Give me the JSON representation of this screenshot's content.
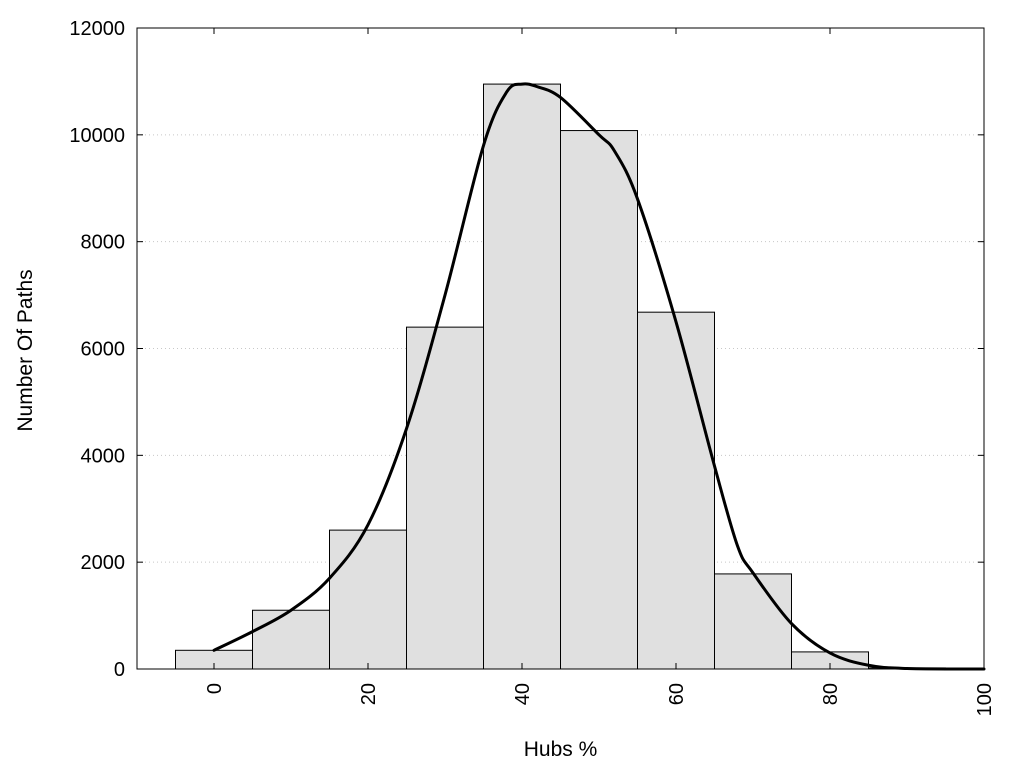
{
  "chart_data": {
    "type": "bar",
    "title": "",
    "xlabel": "Hubs %",
    "ylabel": "Number Of Paths",
    "xlim": [
      -10,
      100
    ],
    "ylim": [
      0,
      12000
    ],
    "xticks": [
      0,
      20,
      40,
      60,
      80,
      100
    ],
    "yticks": [
      0,
      2000,
      4000,
      6000,
      8000,
      10000,
      12000
    ],
    "grid": "horizontal dotted",
    "bar_color": "#e0e0e0",
    "bar_width": 10,
    "bins": [
      {
        "center": 0,
        "value": 350
      },
      {
        "center": 10,
        "value": 1100
      },
      {
        "center": 20,
        "value": 2600
      },
      {
        "center": 30,
        "value": 6400
      },
      {
        "center": 40,
        "value": 10950
      },
      {
        "center": 50,
        "value": 10080
      },
      {
        "center": 60,
        "value": 6680
      },
      {
        "center": 70,
        "value": 1780
      },
      {
        "center": 80,
        "value": 320
      },
      {
        "center": 90,
        "value": 20
      }
    ],
    "curve": {
      "x": [
        0,
        5,
        10,
        15,
        20,
        25,
        30,
        35,
        38,
        40,
        42,
        45,
        50,
        52,
        55,
        60,
        65,
        68,
        70,
        75,
        80,
        85,
        90,
        100
      ],
      "y": [
        350,
        700,
        1100,
        1700,
        2700,
        4500,
        7000,
        9800,
        10800,
        10950,
        10900,
        10700,
        10000,
        9700,
        8800,
        6500,
        3800,
        2300,
        1800,
        850,
        300,
        70,
        10,
        0
      ]
    }
  }
}
